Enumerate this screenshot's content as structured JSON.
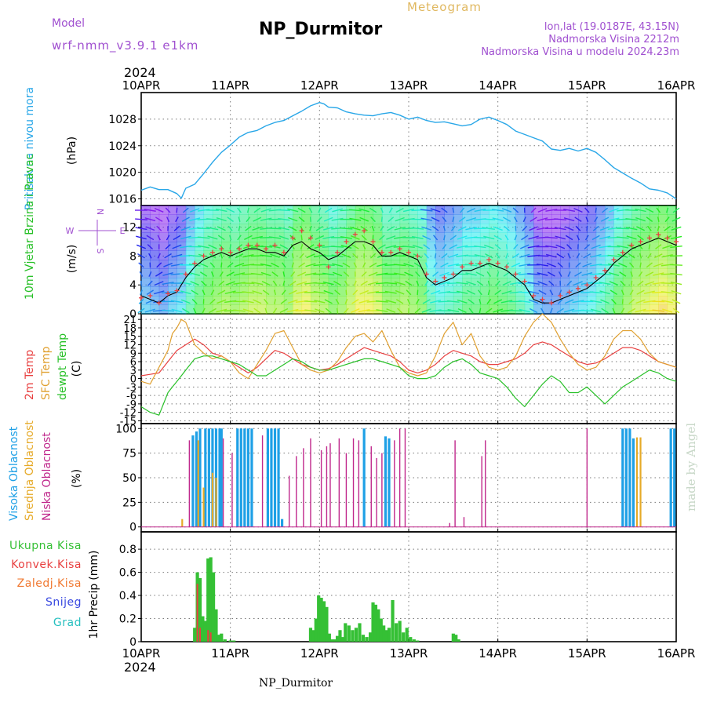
{
  "header": {
    "title": "NP_Durmitor",
    "product": "Meteogram",
    "model_label": "Model",
    "model_value": "wrf-nmm_v3.9.1  e1km",
    "location_line1": "lon,lat (19.0187E, 43.15N)",
    "location_line2": "Nadmorska Visina 2212m",
    "location_line3": "Nadmorska Visina u modelu 2024.23m",
    "year_top": "2024",
    "year_bottom": "2024",
    "footer_station": "NP_Durmitor",
    "watermark": "made by Angel"
  },
  "colors": {
    "pressure": "#29a7e8",
    "temp2m": "#e84040",
    "sfc": "#e0a030",
    "dewpt": "#28c028",
    "cloud_high": "#1ea0e6",
    "cloud_mid": "#e6aa28",
    "cloud_low": "#c0288c",
    "precip_total": "#35c035",
    "precip_conv": "#e84040",
    "precip_frz": "#f07830",
    "snow": "#3848e0",
    "grad": "#28c0c0",
    "label_purple": "#a050d0"
  },
  "chart_data": [
    {
      "panel": "pressure",
      "type": "line",
      "x_tick_labels": [
        "10APR",
        "11APR",
        "12APR",
        "13APR",
        "14APR",
        "15APR",
        "16APR"
      ],
      "xlim_days": [
        0,
        6
      ],
      "ylabel": "Pritisak na nivou mora",
      "unit": "(hPa)",
      "ylim": [
        1015,
        1032
      ],
      "y_ticks": [
        1016,
        1020,
        1024,
        1028
      ],
      "grid": true,
      "x": [
        0,
        0.1,
        0.2,
        0.3,
        0.4,
        0.45,
        0.5,
        0.6,
        0.7,
        0.8,
        0.9,
        1.0,
        1.1,
        1.2,
        1.3,
        1.4,
        1.5,
        1.6,
        1.7,
        1.8,
        1.9,
        2.0,
        2.05,
        2.1,
        2.2,
        2.3,
        2.4,
        2.5,
        2.6,
        2.7,
        2.8,
        2.9,
        3.0,
        3.1,
        3.2,
        3.3,
        3.4,
        3.5,
        3.6,
        3.7,
        3.8,
        3.9,
        4.0,
        4.1,
        4.2,
        4.3,
        4.4,
        4.5,
        4.6,
        4.7,
        4.8,
        4.9,
        5.0,
        5.1,
        5.2,
        5.3,
        5.4,
        5.5,
        5.6,
        5.7,
        5.8,
        5.9,
        6.0
      ],
      "values": [
        1017.3,
        1017.8,
        1017.4,
        1017.4,
        1016.8,
        1016.1,
        1017.6,
        1018.2,
        1019.8,
        1021.5,
        1023.0,
        1024.1,
        1025.3,
        1026.0,
        1026.3,
        1027.0,
        1027.5,
        1027.8,
        1028.5,
        1029.2,
        1030.0,
        1030.5,
        1030.3,
        1029.8,
        1029.7,
        1029.1,
        1028.8,
        1028.6,
        1028.5,
        1028.8,
        1029.0,
        1028.6,
        1028.0,
        1028.3,
        1027.8,
        1027.5,
        1027.6,
        1027.3,
        1027.0,
        1027.2,
        1028.0,
        1028.3,
        1027.8,
        1027.2,
        1026.2,
        1025.7,
        1025.2,
        1024.7,
        1023.5,
        1023.3,
        1023.6,
        1023.2,
        1023.6,
        1023.0,
        1021.9,
        1020.7,
        1019.9,
        1019.1,
        1018.4,
        1017.5,
        1017.3,
        1016.9,
        1016.0
      ]
    },
    {
      "panel": "wind",
      "type": "line",
      "xlim_days": [
        0,
        6
      ],
      "ylabel": "10m Vjetar Brzina i Pravac",
      "unit": "(m/s)",
      "ylim": [
        0,
        15
      ],
      "y_ticks": [
        0,
        4,
        8,
        12
      ],
      "direction_legend": {
        "north": "N",
        "west": "W",
        "east": "E",
        "south": "S"
      },
      "grid": true,
      "x": [
        0,
        0.1,
        0.2,
        0.3,
        0.4,
        0.5,
        0.6,
        0.7,
        0.8,
        0.9,
        1.0,
        1.1,
        1.2,
        1.3,
        1.4,
        1.5,
        1.6,
        1.7,
        1.8,
        1.9,
        2.0,
        2.1,
        2.2,
        2.3,
        2.4,
        2.5,
        2.6,
        2.7,
        2.8,
        2.9,
        3.0,
        3.1,
        3.2,
        3.3,
        3.4,
        3.5,
        3.6,
        3.7,
        3.8,
        3.9,
        4.0,
        4.1,
        4.2,
        4.3,
        4.4,
        4.5,
        4.6,
        4.7,
        4.8,
        4.9,
        5.0,
        5.1,
        5.2,
        5.3,
        5.4,
        5.5,
        5.6,
        5.7,
        5.8,
        5.9,
        6.0
      ],
      "series": [
        {
          "type": "line",
          "values": [
            2.5,
            2.0,
            1.5,
            2.5,
            3.0,
            5.0,
            6.5,
            7.5,
            8.0,
            8.5,
            8.0,
            8.5,
            9.0,
            9.0,
            8.5,
            8.5,
            8.0,
            9.5,
            10.0,
            9.0,
            8.5,
            7.5,
            8.0,
            9.0,
            10.0,
            10.0,
            9.5,
            8.0,
            8.0,
            8.5,
            8.0,
            7.5,
            5.0,
            4.0,
            4.5,
            5.0,
            6.0,
            6.0,
            6.5,
            7.0,
            6.5,
            6.0,
            5.0,
            4.0,
            2.0,
            1.5,
            1.5,
            2.0,
            2.5,
            3.0,
            3.5,
            4.5,
            5.5,
            7.0,
            8.0,
            9.0,
            9.5,
            10.0,
            10.5,
            10.0,
            9.5
          ]
        },
        {
          "type": "scatter",
          "marker": "+",
          "values": [
            2.2,
            2.5,
            1.5,
            2.8,
            3.2,
            5.5,
            7.0,
            8.0,
            8.5,
            9.0,
            8.5,
            9.0,
            9.5,
            9.5,
            9.0,
            9.5,
            8.5,
            10.5,
            11.5,
            10.5,
            9.5,
            6.5,
            8.5,
            10.0,
            11.0,
            11.5,
            10.0,
            8.5,
            8.5,
            9.0,
            8.5,
            8.0,
            5.5,
            4.5,
            5.0,
            5.5,
            6.5,
            7.0,
            7.0,
            7.5,
            7.0,
            6.5,
            5.5,
            4.5,
            2.5,
            2.0,
            1.5,
            2.5,
            3.0,
            3.5,
            4.0,
            5.0,
            6.0,
            7.5,
            8.5,
            9.5,
            10.0,
            10.5,
            11.0,
            10.5,
            10.0
          ]
        }
      ]
    },
    {
      "panel": "temperature",
      "type": "line",
      "xlim_days": [
        0,
        6
      ],
      "ylabels": [
        "2m Temp",
        "SFC Temp",
        "dewpt Temp"
      ],
      "unit": "(C)",
      "ylim": [
        -16,
        23
      ],
      "y_ticks": [
        -15,
        -12,
        -9,
        -6,
        -3,
        0,
        3,
        6,
        9,
        12,
        15,
        18,
        21
      ],
      "y_tick_labels": [
        "-15",
        "-12",
        "-9",
        "-6",
        "-3",
        "0",
        "3",
        "6",
        "9",
        "12",
        "15",
        "18",
        "21"
      ],
      "grid": true,
      "x": [
        0,
        0.1,
        0.2,
        0.3,
        0.35,
        0.4,
        0.45,
        0.5,
        0.6,
        0.7,
        0.8,
        0.9,
        1.0,
        1.1,
        1.2,
        1.3,
        1.4,
        1.5,
        1.6,
        1.7,
        1.8,
        1.9,
        2.0,
        2.1,
        2.2,
        2.3,
        2.4,
        2.5,
        2.6,
        2.7,
        2.8,
        2.9,
        3.0,
        3.1,
        3.2,
        3.3,
        3.4,
        3.5,
        3.6,
        3.7,
        3.8,
        3.9,
        4.0,
        4.1,
        4.2,
        4.3,
        4.4,
        4.5,
        4.6,
        4.7,
        4.8,
        4.9,
        5.0,
        5.1,
        5.2,
        5.3,
        5.4,
        5.5,
        5.6,
        5.7,
        5.8,
        5.9,
        6.0
      ],
      "series": [
        {
          "name": "2m Temp",
          "values": [
            1,
            1.5,
            2,
            6,
            8,
            10,
            11,
            12,
            14,
            12,
            9,
            8,
            6,
            4,
            2,
            4,
            7,
            10,
            9,
            7,
            5,
            4,
            3,
            3.5,
            5,
            7,
            9,
            11,
            10,
            9,
            8,
            6,
            3,
            2,
            3,
            5,
            8,
            10,
            9,
            8,
            6,
            5,
            5,
            6,
            7,
            9,
            12,
            13,
            12,
            10,
            8,
            6,
            5,
            5.5,
            7,
            9,
            11,
            11,
            10,
            8,
            6,
            5,
            4
          ]
        },
        {
          "name": "SFC Temp",
          "values": [
            -1,
            -2,
            4,
            10,
            16,
            18,
            21,
            20,
            12,
            9,
            7,
            8,
            6,
            2,
            0,
            5,
            10,
            16,
            17,
            11,
            5,
            3,
            2,
            3,
            6,
            11,
            15,
            16,
            13,
            17,
            10,
            4,
            2,
            1,
            2,
            8,
            16,
            20,
            12,
            16,
            8,
            4,
            3,
            4,
            8,
            15,
            20,
            23,
            20,
            14,
            9,
            5,
            3,
            4,
            8,
            14,
            17,
            17,
            14,
            9,
            6,
            5,
            4
          ]
        },
        {
          "name": "dewpt Temp",
          "values": [
            -10,
            -12,
            -13,
            -5,
            -3,
            -1,
            1,
            3,
            7,
            8,
            8,
            7,
            6,
            5,
            3,
            1,
            1,
            3,
            5,
            7,
            6,
            4,
            3,
            3,
            4,
            5,
            6,
            7,
            7,
            6,
            5,
            4,
            1,
            0,
            0,
            1,
            4,
            6,
            7,
            5,
            2,
            1,
            0,
            -3,
            -7,
            -10,
            -6,
            -2,
            1,
            -1,
            -5,
            -5,
            -3,
            -6,
            -9,
            -6,
            -3,
            -1,
            1,
            3,
            2,
            0,
            -1
          ]
        }
      ]
    },
    {
      "panel": "cloud",
      "type": "bar",
      "xlim_days": [
        0,
        6
      ],
      "ylabels": [
        "Visoka Oblacnost",
        "Srednja Oblacnost",
        "Niska Oblacnost"
      ],
      "unit": "(%)",
      "ylim": [
        -5,
        105
      ],
      "y_ticks": [
        0,
        25,
        50,
        75,
        100
      ],
      "grid": true,
      "series": [
        {
          "name": "Visoka Oblacnost",
          "x": [
            0.58,
            0.62,
            0.66,
            0.72,
            0.76,
            0.8,
            0.84,
            0.88,
            0.9,
            1.08,
            1.12,
            1.16,
            1.2,
            1.24,
            1.42,
            1.46,
            1.5,
            1.54,
            1.58,
            2.5,
            2.74,
            2.78,
            5.4,
            5.44,
            5.48,
            5.52,
            5.94,
            5.98
          ],
          "values": [
            93,
            97,
            100,
            100,
            100,
            100,
            100,
            100,
            100,
            100,
            100,
            100,
            100,
            100,
            100,
            100,
            100,
            100,
            8,
            100,
            92,
            90,
            100,
            100,
            100,
            90,
            100,
            100
          ]
        },
        {
          "name": "Srednja Oblacnost",
          "x": [
            0.46,
            0.64,
            0.7,
            0.8,
            0.84,
            5.56,
            5.6
          ],
          "values": [
            8,
            88,
            40,
            55,
            50,
            91,
            91
          ]
        },
        {
          "name": "Niska Oblacnost",
          "x": [
            0.54,
            0.92,
            1.02,
            1.36,
            1.66,
            1.74,
            1.82,
            1.9,
            2.02,
            2.08,
            2.12,
            2.22,
            2.3,
            2.38,
            2.44,
            2.58,
            2.64,
            2.7,
            2.84,
            2.9,
            2.96,
            3.46,
            3.52,
            3.62,
            3.82,
            3.86,
            5.0
          ],
          "values": [
            88,
            90,
            75,
            93,
            52,
            72,
            80,
            90,
            78,
            82,
            85,
            90,
            75,
            90,
            88,
            82,
            70,
            75,
            88,
            100,
            100,
            4,
            88,
            10,
            72,
            88,
            100
          ]
        }
      ]
    },
    {
      "panel": "precip",
      "type": "bar",
      "xlim_days": [
        0,
        6
      ],
      "ylabel": "1hr Precip",
      "unit": "(mm)",
      "ylim": [
        0,
        0.95
      ],
      "y_ticks": [
        0,
        0.2,
        0.4,
        0.6,
        0.8
      ],
      "y_tick_labels": [
        "0",
        "0.2",
        "0.4",
        "0.6",
        "0.8"
      ],
      "grid": true,
      "legend": [
        "Ukupna Kisa",
        "Konvek.Kisa",
        "Zaledj.Kisa",
        "Snijeg",
        "Grad"
      ],
      "series": [
        {
          "name": "Ukupna Kisa",
          "x": [
            0.6,
            0.63,
            0.66,
            0.69,
            0.72,
            0.75,
            0.78,
            0.81,
            0.84,
            0.87,
            0.9,
            0.94,
            1.0,
            1.04,
            1.9,
            1.93,
            1.96,
            1.99,
            2.02,
            2.05,
            2.08,
            2.11,
            2.14,
            2.17,
            2.2,
            2.23,
            2.26,
            2.29,
            2.33,
            2.37,
            2.41,
            2.45,
            2.49,
            2.53,
            2.57,
            2.6,
            2.63,
            2.66,
            2.69,
            2.72,
            2.75,
            2.78,
            2.82,
            2.86,
            2.9,
            2.94,
            2.98,
            3.02,
            3.06,
            3.1,
            3.5,
            3.53,
            3.56
          ],
          "values": [
            0.12,
            0.6,
            0.55,
            0.22,
            0.18,
            0.72,
            0.73,
            0.6,
            0.28,
            0.06,
            0.07,
            0.02,
            0.01,
            0.01,
            0.12,
            0.1,
            0.2,
            0.4,
            0.38,
            0.35,
            0.3,
            0.07,
            0.02,
            0.02,
            0.05,
            0.1,
            0.04,
            0.16,
            0.14,
            0.1,
            0.12,
            0.16,
            0.06,
            0.04,
            0.08,
            0.34,
            0.32,
            0.28,
            0.2,
            0.14,
            0.1,
            0.12,
            0.36,
            0.16,
            0.18,
            0.08,
            0.12,
            0.04,
            0.02,
            0.01,
            0.07,
            0.06,
            0.02
          ]
        },
        {
          "name": "Konvek.Kisa",
          "x": [
            0.63,
            0.66,
            0.75,
            0.78
          ],
          "values": [
            0.5,
            0.12,
            0.1,
            0.08
          ]
        }
      ]
    }
  ]
}
